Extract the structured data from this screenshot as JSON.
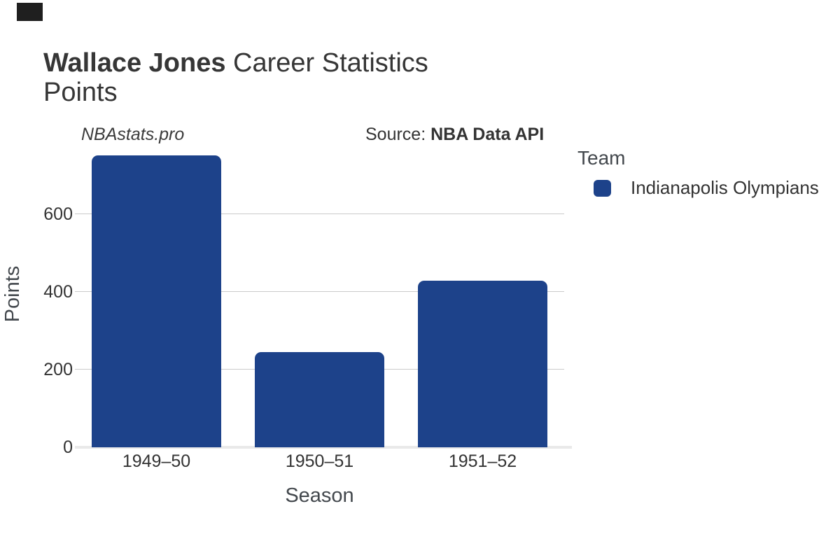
{
  "title": {
    "player": "Wallace Jones",
    "suffix": " Career Statistics",
    "metric": "Points"
  },
  "watermark": "NBAstats.pro",
  "source": {
    "prefix": "Source: ",
    "name": "NBA Data API"
  },
  "legend": {
    "title": "Team",
    "items": [
      {
        "label": "Indianapolis Olympians",
        "color": "#1d428a"
      }
    ]
  },
  "chart_data": {
    "type": "bar",
    "categories": [
      "1949–50",
      "1950–51",
      "1951–52"
    ],
    "series": [
      {
        "name": "Indianapolis Olympians",
        "values": [
          750,
          245,
          428
        ],
        "color": "#1d428a"
      }
    ],
    "title": "Wallace Jones Career Statistics — Points",
    "xlabel": "Season",
    "ylabel": "Points",
    "ylim": [
      0,
      758
    ],
    "yticks": [
      0,
      200,
      400,
      600
    ],
    "grid": true,
    "legend_position": "right"
  },
  "colors": {
    "bar": "#1d428a",
    "grid": "#cbcbcb",
    "baseline": "#e9e9e9",
    "corner_mark": "#1f1f1f",
    "title_text": "#363636",
    "axis_text": "#43484d",
    "tick_text": "#333333"
  }
}
